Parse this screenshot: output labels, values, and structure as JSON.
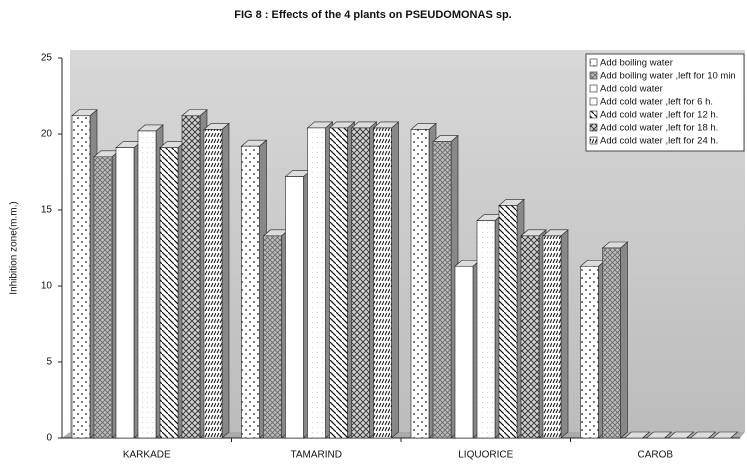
{
  "chart_data": {
    "type": "bar3d",
    "title": "FIG 8 : Effects of the 4 plants on PSEUDOMONAS sp.",
    "y_label": "Inhibition zone(m.m.)",
    "categories": [
      "KARKADE",
      "TAMARIND",
      "LIQUORICE",
      "CAROB"
    ],
    "series": [
      {
        "name": "Add boiling water",
        "color": "#ffffff",
        "values": [
          21.2,
          19.2,
          20.3,
          11.3
        ]
      },
      {
        "name": "Add boiling water ,left for 10 min",
        "color": "#bdbdbd",
        "values": [
          18.5,
          13.3,
          19.5,
          12.5
        ]
      },
      {
        "name": "Add cold water",
        "color": "#ffffff",
        "values": [
          19.1,
          17.2,
          11.3,
          0
        ]
      },
      {
        "name": "Add cold water ,left for 6 h.",
        "color": "#ffffff",
        "values": [
          20.2,
          20.4,
          14.3,
          0
        ]
      },
      {
        "name": "Add cold water ,left for 12 h.",
        "color": "#ffffff",
        "values": [
          19.1,
          20.4,
          15.3,
          0
        ]
      },
      {
        "name": "Add cold water ,left for 18 h.",
        "color": "#d0d0d0",
        "values": [
          21.2,
          20.4,
          13.3,
          0
        ]
      },
      {
        "name": "Add cold water ,left for 24 h.",
        "color": "#ffffff",
        "values": [
          20.3,
          20.4,
          13.3,
          0
        ]
      }
    ],
    "ylim": [
      0,
      25
    ],
    "yticks": [
      0,
      5,
      10,
      15,
      20,
      25
    ],
    "legend": "upper right"
  }
}
